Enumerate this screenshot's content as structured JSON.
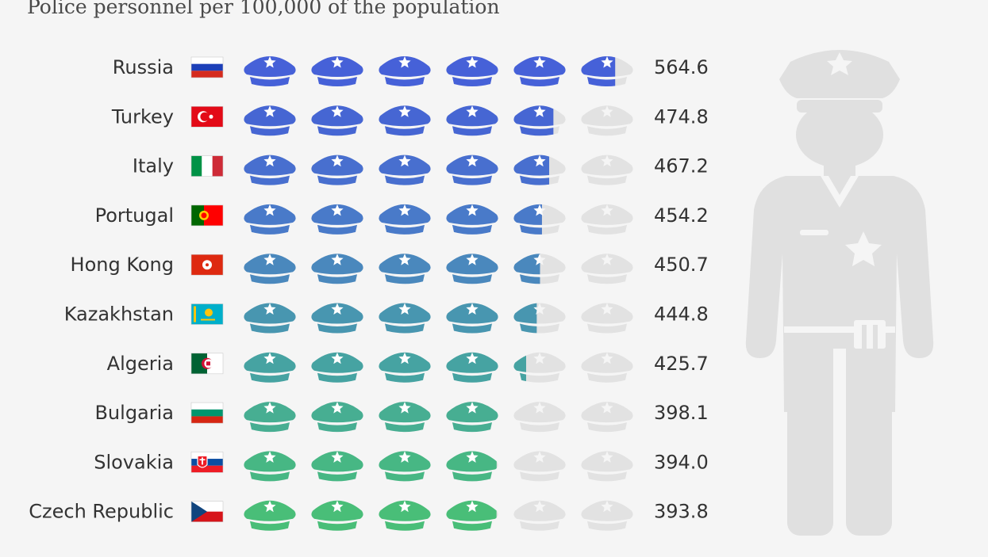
{
  "subtitle": "Police personnel per 100,000 of the population",
  "chart_data": {
    "type": "bar",
    "unit_per_icon": 100,
    "icons_per_row": 6,
    "categories": [
      "Russia",
      "Turkey",
      "Italy",
      "Portugal",
      "Hong Kong",
      "Kazakhstan",
      "Algeria",
      "Bulgaria",
      "Slovakia",
      "Czech Republic"
    ],
    "values": [
      564.6,
      474.8,
      467.2,
      454.2,
      450.7,
      444.8,
      425.7,
      398.1,
      394.0,
      393.8
    ],
    "value_labels": [
      "564.6",
      "474.8",
      "467.2",
      "454.2",
      "450.7",
      "444.8",
      "425.7",
      "398.1",
      "394.0",
      "393.8"
    ],
    "flags": [
      "russia-flag",
      "turkey-flag",
      "italy-flag",
      "portugal-flag",
      "hong-kong-flag",
      "kazakhstan-flag",
      "algeria-flag",
      "bulgaria-flag",
      "slovakia-flag",
      "czech-republic-flag"
    ],
    "row_colors": [
      "#4661d8",
      "#4666d3",
      "#486fcf",
      "#497ac9",
      "#4a88bd",
      "#4896b0",
      "#46a3a2",
      "#47ae92",
      "#47b784",
      "#49be78"
    ],
    "empty_color": "#e2e2e2",
    "silhouette_color": "#e0e0e0",
    "icon": "police-cap-icon",
    "figure_icon": "police-officer-icon"
  }
}
